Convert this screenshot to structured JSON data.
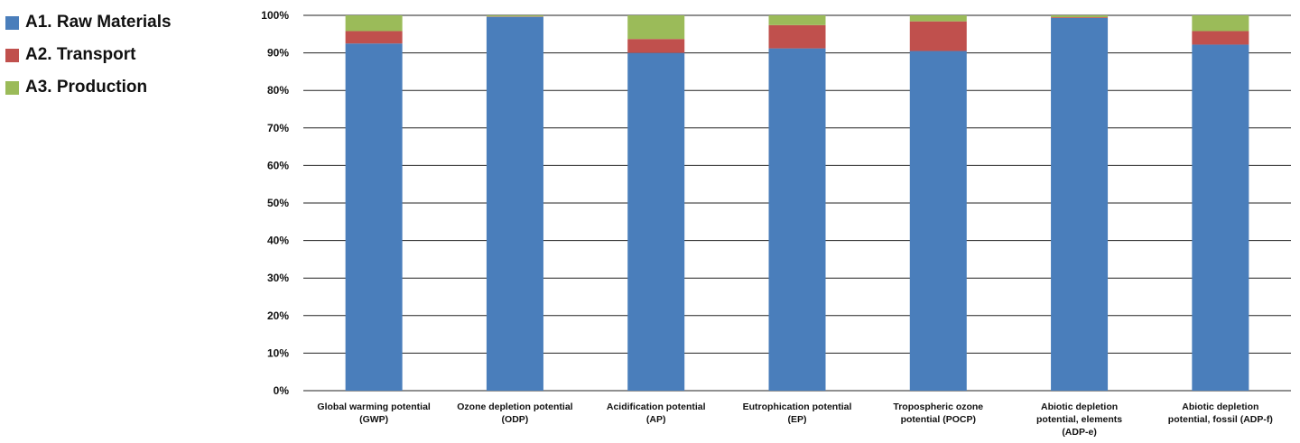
{
  "chart_data": {
    "type": "bar",
    "stacked": true,
    "percent_stacked": true,
    "title": "",
    "xlabel": "",
    "ylabel": "",
    "ylim": [
      0,
      100
    ],
    "y_ticks": [
      "0%",
      "10%",
      "20%",
      "30%",
      "40%",
      "50%",
      "60%",
      "70%",
      "80%",
      "90%",
      "100%"
    ],
    "grid": true,
    "legend_position": "top-left",
    "categories": [
      [
        "Global warming potential",
        "(GWP)"
      ],
      [
        "Ozone depletion potential",
        "(ODP)"
      ],
      [
        "Acidification potential",
        "(AP)"
      ],
      [
        "Eutrophication potential",
        "(EP)"
      ],
      [
        "Tropospheric ozone",
        "potential (POCP)"
      ],
      [
        "Abiotic depletion",
        "potential, elements",
        "(ADP-e)"
      ],
      [
        "Abiotic depletion",
        "potential, fossil (ADP-f)"
      ]
    ],
    "series": [
      {
        "name": "A1. Raw Materials",
        "color": "#4a7ebb",
        "values": [
          92.5,
          99.6,
          90.0,
          91.2,
          90.5,
          99.3,
          92.2
        ]
      },
      {
        "name": "A2. Transport",
        "color": "#c0504d",
        "values": [
          3.3,
          0.1,
          3.7,
          6.2,
          7.9,
          0.2,
          3.6
        ]
      },
      {
        "name": "A3. Production",
        "color": "#9bbb59",
        "values": [
          4.2,
          0.3,
          6.3,
          2.6,
          1.6,
          0.5,
          4.2
        ]
      }
    ]
  }
}
